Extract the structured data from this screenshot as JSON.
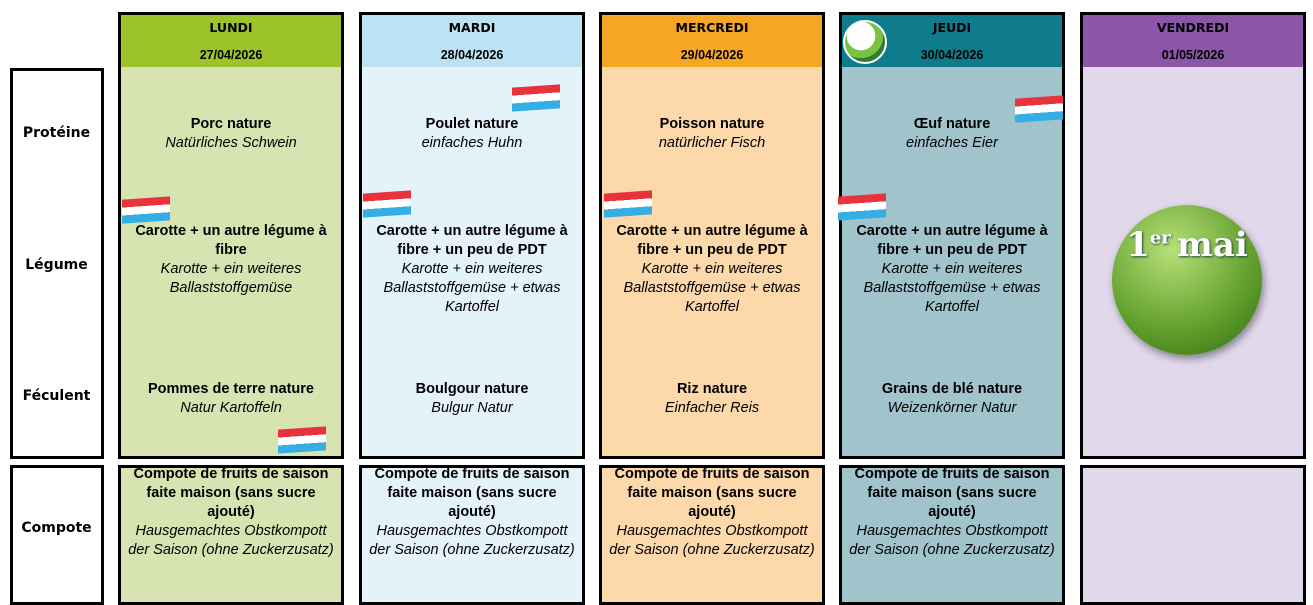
{
  "row_labels": [
    "Protéine",
    "Légume",
    "Féculent",
    "Compote"
  ],
  "days": [
    {
      "name": "LUNDI",
      "date": "27/04/2026",
      "proteine": {
        "fr": "Porc nature",
        "de": "Natürliches Schwein"
      },
      "legume": {
        "fr": "Carotte + un autre légume à fibre",
        "de": "Karotte + ein weiteres Ballaststoffgemüse"
      },
      "feculent": {
        "fr": "Pommes de terre nature",
        "de": "Natur Kartoffeln"
      },
      "compote": {
        "fr": "Compote de fruits de saison faite maison (sans sucre ajouté)",
        "de": "Hausgemachtes Obstkompott der Saison (ohne Zuckerzusatz)"
      }
    },
    {
      "name": "MARDI",
      "date": "28/04/2026",
      "proteine": {
        "fr": "Poulet nature",
        "de": "einfaches Huhn"
      },
      "legume": {
        "fr": "Carotte + un autre légume à fibre + un peu de PDT",
        "de": "Karotte + ein weiteres Ballaststoffgemüse + etwas Kartoffel"
      },
      "feculent": {
        "fr": "Boulgour nature",
        "de": "Bulgur Natur"
      },
      "compote": {
        "fr": "Compote de fruits de saison faite maison (sans sucre ajouté)",
        "de": "Hausgemachtes Obstkompott der Saison (ohne Zuckerzusatz)"
      }
    },
    {
      "name": "MERCREDI",
      "date": "29/04/2026",
      "proteine": {
        "fr": "Poisson nature",
        "de": "natürlicher Fisch"
      },
      "legume": {
        "fr": "Carotte + un autre légume à fibre + un peu de PDT",
        "de": "Karotte + ein weiteres Ballaststoffgemüse + etwas Kartoffel"
      },
      "feculent": {
        "fr": "Riz nature",
        "de": "Einfacher Reis"
      },
      "compote": {
        "fr": "Compote de fruits de saison faite maison (sans sucre ajouté)",
        "de": "Hausgemachtes Obstkompott der Saison (ohne Zuckerzusatz)"
      }
    },
    {
      "name": "JEUDI",
      "date": "30/04/2026",
      "proteine": {
        "fr": "Œuf nature",
        "de": "einfaches Eier"
      },
      "legume": {
        "fr": "Carotte + un autre légume à fibre + un peu de PDT",
        "de": "Karotte + ein weiteres Ballaststoffgemüse + etwas Kartoffel"
      },
      "feculent": {
        "fr": "Grains de blé nature",
        "de": "Weizenkörner Natur"
      },
      "compote": {
        "fr": "Compote de fruits de saison faite maison (sans sucre ajouté)",
        "de": "Hausgemachtes Obstkompott der Saison (ohne Zuckerzusatz)"
      }
    },
    {
      "name": "VENDREDI",
      "date": "01/05/2026"
    }
  ],
  "holiday": {
    "number": "1",
    "sup": "er",
    "word": "mai"
  }
}
